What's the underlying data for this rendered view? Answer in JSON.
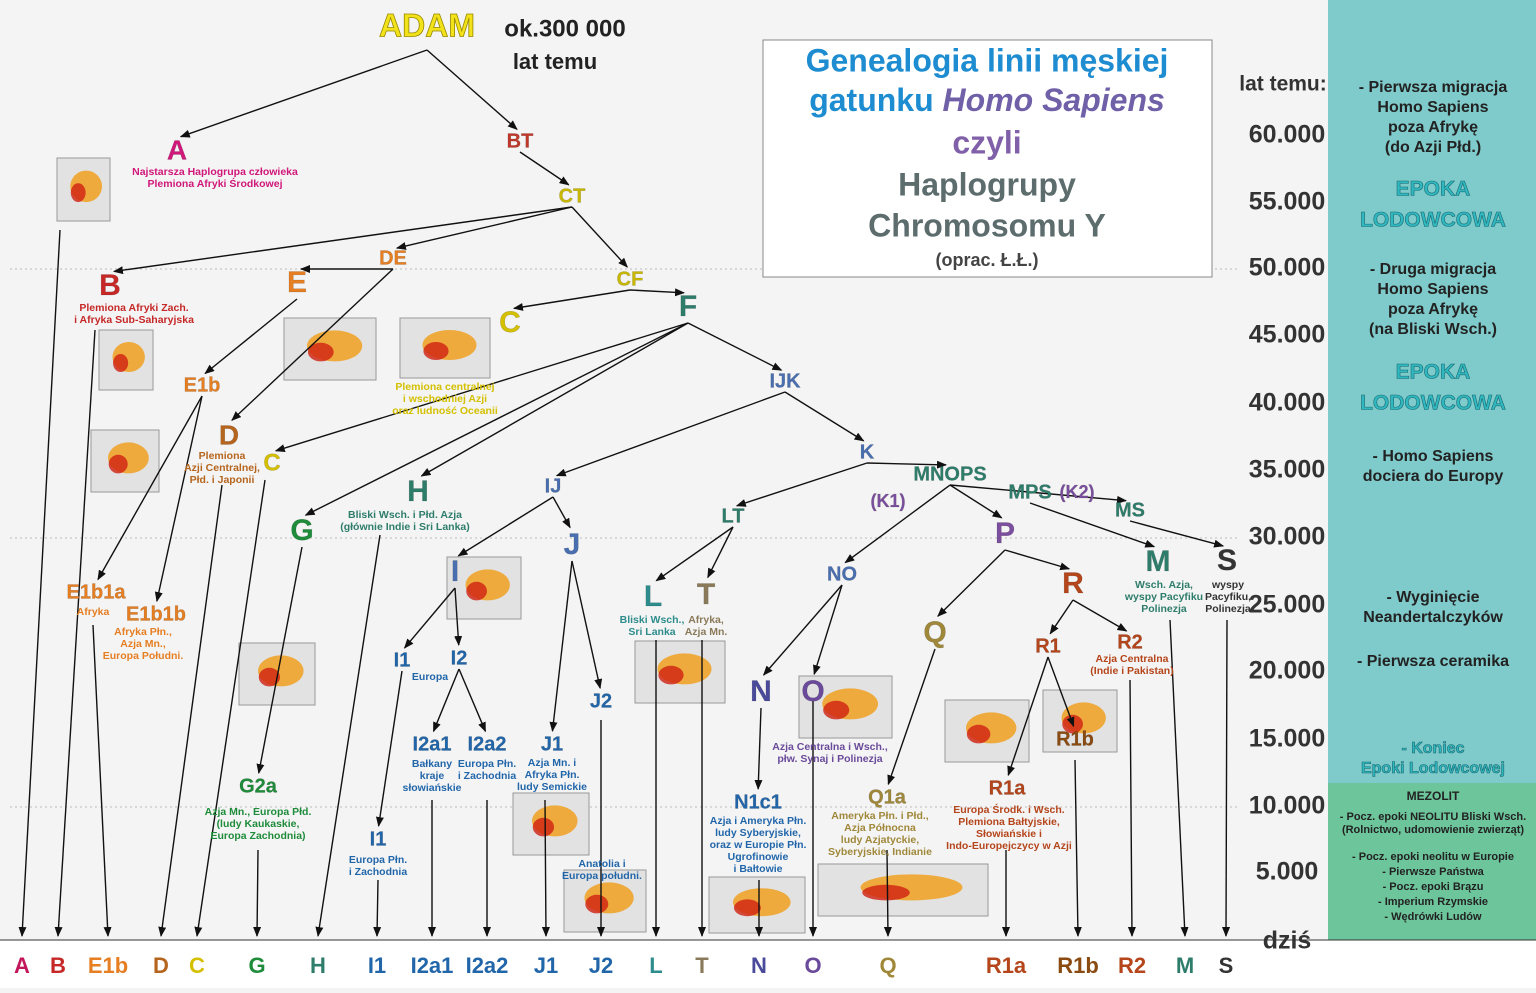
{
  "header": {
    "root": "ADAM",
    "age": "ok.300 000",
    "age_unit": "lat temu"
  },
  "title_box": {
    "line1": "Genealogia linii męskiej",
    "line2a": "gatunku",
    "line2b": "Homo Sapiens",
    "line3": "czyli",
    "line4": "Haplogrupy",
    "line5": "Chromosomu Y",
    "author": "(oprac. Ł.Ł.)"
  },
  "time_axis": {
    "header": "lat temu:",
    "ticks": [
      "60.000",
      "55.000",
      "50.000",
      "45.000",
      "40.000",
      "35.000",
      "30.000",
      "25.000",
      "20.000",
      "15.000",
      "10.000",
      "5.000",
      "dziś"
    ]
  },
  "nodes": [
    {
      "label": "A",
      "desc": [
        "Najstarsza Haplogrupa człowieka",
        "Plemiona Afryki Środkowej"
      ]
    },
    {
      "label": "BT"
    },
    {
      "label": "CT"
    },
    {
      "label": "B",
      "desc": [
        "Plemiona Afryki Zach.",
        "i Afryka Sub-Saharyjska"
      ]
    },
    {
      "label": "DE"
    },
    {
      "label": "E"
    },
    {
      "label": "CF"
    },
    {
      "label": "F"
    },
    {
      "label": "C",
      "desc": [
        "Plemiona centralnej",
        "i wschodniej Azji",
        "oraz ludność Oceanii"
      ]
    },
    {
      "label": "E1b"
    },
    {
      "label": "D",
      "desc": [
        "Plemiona",
        "Azji Centralnej,",
        "Płd. i Japonii"
      ]
    },
    {
      "label": "C"
    },
    {
      "label": "IJK"
    },
    {
      "label": "K"
    },
    {
      "label": "MNOPS"
    },
    {
      "label": "(K1)"
    },
    {
      "label": "MPS"
    },
    {
      "label": "(K2)"
    },
    {
      "label": "MS"
    },
    {
      "label": "H",
      "desc": [
        "Bliski Wsch. i Płd. Azja",
        "(głównie Indie i Sri Lanka)"
      ]
    },
    {
      "label": "IJ"
    },
    {
      "label": "G"
    },
    {
      "label": "LT"
    },
    {
      "label": "P"
    },
    {
      "label": "J"
    },
    {
      "label": "M",
      "desc": [
        "Wsch. Azja,",
        "wyspy Pacyfiku",
        "Polinezja"
      ]
    },
    {
      "label": "S",
      "desc": [
        "wyspy",
        "Pacyfiku,",
        "Polinezja"
      ]
    },
    {
      "label": "NO"
    },
    {
      "label": "I"
    },
    {
      "label": "R"
    },
    {
      "label": "E1b1a",
      "desc": [
        "Afryka"
      ]
    },
    {
      "label": "E1b1b",
      "desc": [
        "Afryka Płn.,",
        "Azja Mn.,",
        "Europa Południ."
      ]
    },
    {
      "label": "L",
      "desc": [
        "Bliski Wsch.,",
        "Sri Lanka"
      ]
    },
    {
      "label": "T",
      "desc": [
        "Afryka,",
        "Azja Mn."
      ]
    },
    {
      "label": "Q"
    },
    {
      "label": "R2",
      "desc": [
        "Azja Centralna",
        "(Indie i Pakistan)"
      ]
    },
    {
      "label": "R1"
    },
    {
      "label": "I1"
    },
    {
      "label": "I2",
      "desc": [
        "Europa"
      ]
    },
    {
      "label": "N"
    },
    {
      "label": "O",
      "desc": [
        "Azja Centralna i Wsch.,",
        "płw. Synaj i Polinezja"
      ]
    },
    {
      "label": "J2",
      "desc": [
        "Anatolia i",
        "Europa południ."
      ]
    },
    {
      "label": "I2a1",
      "desc": [
        "Bałkany",
        "kraje",
        "słowiańskie"
      ]
    },
    {
      "label": "I2a2",
      "desc": [
        "Europa Płn.",
        "i Zachodnia"
      ]
    },
    {
      "label": "J1",
      "desc": [
        "Azja Mn. i",
        "Afryka Płn.",
        "ludy Semickie"
      ]
    },
    {
      "label": "R1b"
    },
    {
      "label": "G2a",
      "desc": [
        "Azja Mn., Europa Płd.",
        "(ludy Kaukaskie,",
        "Europa Zachodnia)"
      ]
    },
    {
      "label": "R1a",
      "desc": [
        "Europa Środk. i Wsch.",
        "Plemiona Bałtyjskie,",
        "Słowiańskie i",
        "Indo-Europejczycy w Azji"
      ]
    },
    {
      "label": "Q1a",
      "desc": [
        "Ameryka Płn. i Płd.,",
        "Azja Północna",
        "ludy Azjatyckie,",
        "Syberyjskie, Indianie"
      ]
    },
    {
      "label": "N1c1",
      "desc": [
        "Azja i Ameryka Płn.",
        "ludy Syberyjskie,",
        "oraz w Europie Płn.",
        "Ugrofinowie",
        "i Bałtowie"
      ]
    },
    {
      "label": "I1",
      "desc": [
        "Europa Płn.",
        "i Zachodnia"
      ]
    }
  ],
  "bottom_labels": [
    "A",
    "B",
    "E1b",
    "D",
    "C",
    "G",
    "H",
    "I1",
    "I2a1",
    "I2a2",
    "J1",
    "J2",
    "L",
    "T",
    "N",
    "O",
    "Q",
    "R1a",
    "R1b",
    "R2",
    "M",
    "S"
  ],
  "side_panel": [
    [
      "- Pierwsza migracja",
      "Homo Sapiens",
      "poza Afrykę",
      "(do Azji Płd.)"
    ],
    [
      "EPOKA",
      "LODOWCOWA"
    ],
    [
      "- Druga migracja",
      "Homo Sapiens",
      "poza Afrykę",
      "(na Bliski Wsch.)"
    ],
    [
      "EPOKA",
      "LODOWCOWA"
    ],
    [
      "- Homo Sapiens",
      "dociera do Europy"
    ],
    [
      "- Wyginięcie",
      "Neandertalczyków"
    ],
    [
      "- Pierwsza ceramika"
    ],
    [
      "- Koniec",
      "Epoki Lodowcowej"
    ],
    [
      "MEZOLIT"
    ],
    [
      "- Pocz. epoki NEOLITU Bliski Wsch.",
      "(Rolnictwo, udomowienie zwierząt)"
    ],
    [
      "- Pocz. epoki neolitu w Europie",
      "- Pierwsze Państwa",
      "- Pocz. epoki Brązu",
      "- Imperium Rzymskie",
      "- Wędrówki Ludów"
    ]
  ]
}
